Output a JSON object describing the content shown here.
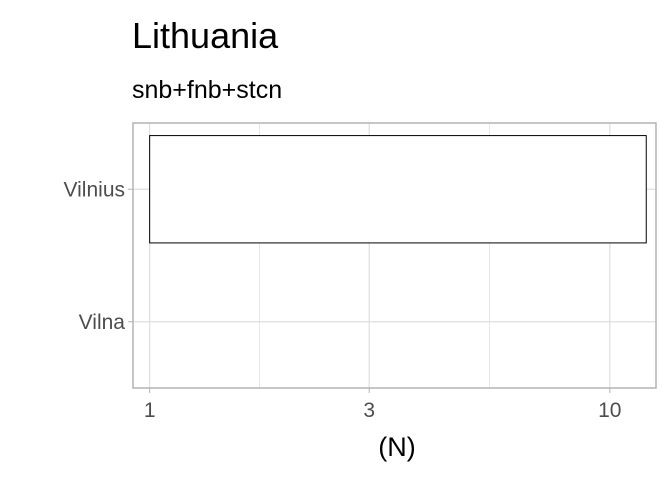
{
  "chart_data": {
    "type": "bar",
    "orientation": "horizontal",
    "title": "Lithuania",
    "subtitle": "snb+fnb+stcn",
    "xlabel": "(N)",
    "ylabel": "",
    "x_scale": "log10",
    "xlim": [
      0.92,
      12.6
    ],
    "x_ticks": [
      1,
      3,
      10
    ],
    "x_tick_labels": [
      "1",
      "3",
      "10"
    ],
    "categories": [
      "Vilnius",
      "Vilna"
    ],
    "values": [
      12,
      1
    ],
    "grid": true,
    "legend": "none",
    "colors": {
      "bar_fill": "#ffffff",
      "bar_stroke": "#000000",
      "grid": "#dedede",
      "panel_border": "#b3b3b3"
    }
  }
}
